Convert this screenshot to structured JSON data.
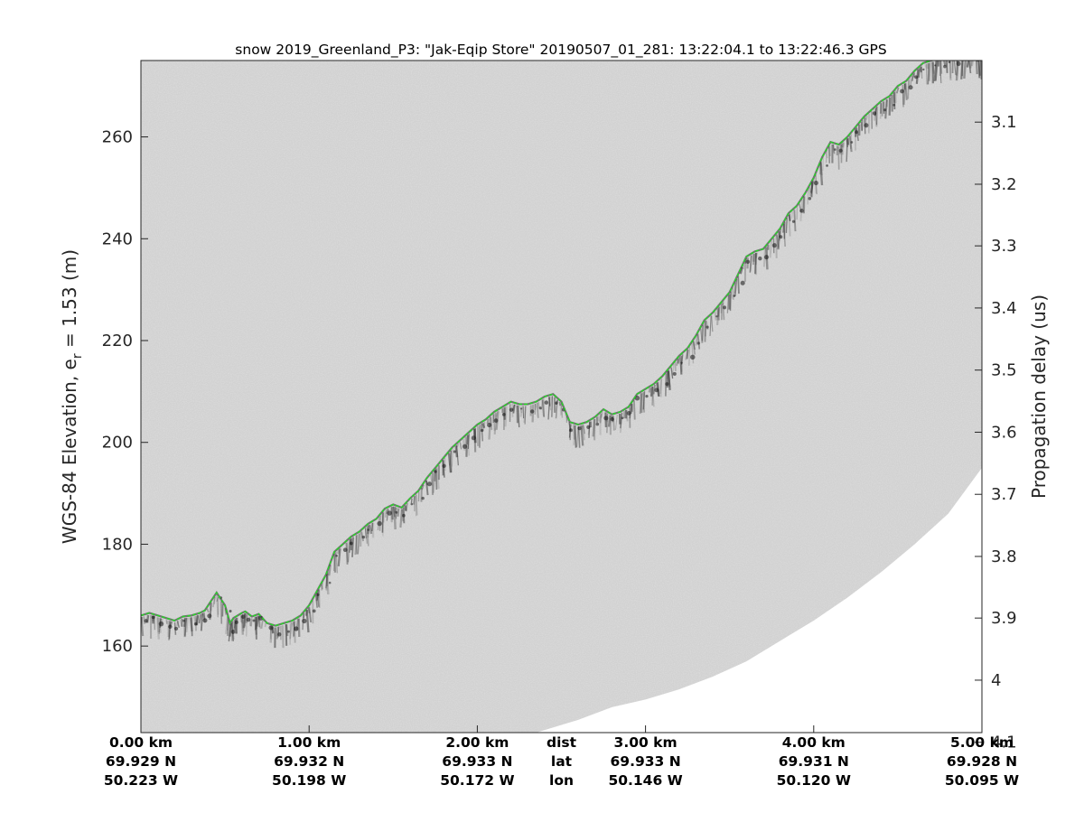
{
  "chart_data": {
    "type": "line",
    "title": "snow 2019_Greenland_P3: \"Jak-Eqip Store\"  20190507_01_281: 13:22:04.1 to 13:22:46.3 GPS",
    "ylabel_main": "WGS-84 Elevation, e",
    "ylabel_sub": "r",
    "ylabel_tail": " = 1.53 (m)",
    "ylabel_right": "Propagation delay (us)",
    "xlim": [
      0,
      5.0
    ],
    "ylim": [
      143,
      275
    ],
    "yticks": [
      160,
      180,
      200,
      220,
      240,
      260
    ],
    "yticks_right": [
      {
        "label": "3.1",
        "elev": 262.9
      },
      {
        "label": "3.2",
        "elev": 250.7
      },
      {
        "label": "3.3",
        "elev": 238.6
      },
      {
        "label": "3.4",
        "elev": 226.4
      },
      {
        "label": "3.5",
        "elev": 214.2
      },
      {
        "label": "3.6",
        "elev": 202.0
      },
      {
        "label": "3.7",
        "elev": 189.8
      },
      {
        "label": "3.8",
        "elev": 177.6
      },
      {
        "label": "3.9",
        "elev": 165.5
      },
      {
        "label": "4",
        "elev": 153.3
      },
      {
        "label": "4.1",
        "elev": 141.1
      }
    ],
    "geo_ticks": [
      {
        "x": 0,
        "dist": "0.00 km",
        "lat": "69.929 N",
        "lon": "50.223 W"
      },
      {
        "x": 1,
        "dist": "1.00 km",
        "lat": "69.932 N",
        "lon": "50.198 W"
      },
      {
        "x": 2,
        "dist": "2.00 km",
        "lat": "69.933 N",
        "lon": "50.172 W"
      },
      {
        "x": 3,
        "dist": "3.00 km",
        "lat": "69.933 N",
        "lon": "50.146 W"
      },
      {
        "x": 4,
        "dist": "4.00 km",
        "lat": "69.931 N",
        "lon": "50.120 W"
      },
      {
        "x": 5,
        "dist": "5.00 km",
        "lat": "69.928 N",
        "lon": "50.095 W"
      }
    ],
    "row_labels": {
      "x": 2.5,
      "dist": "dist",
      "lat": "lat",
      "lon": "lon"
    },
    "series": [
      {
        "color": "#22dd22",
        "x": [
          0,
          0.05,
          0.1,
          0.15,
          0.2,
          0.25,
          0.3,
          0.35,
          0.38,
          0.45,
          0.5,
          0.53,
          0.55,
          0.6,
          0.62,
          0.66,
          0.7,
          0.75,
          0.8,
          0.85,
          0.9,
          0.95,
          1.0,
          1.05,
          1.1,
          1.15,
          1.2,
          1.25,
          1.3,
          1.35,
          1.4,
          1.45,
          1.5,
          1.55,
          1.6,
          1.65,
          1.7,
          1.75,
          1.8,
          1.85,
          1.9,
          1.95,
          2.0,
          2.05,
          2.1,
          2.15,
          2.2,
          2.25,
          2.3,
          2.35,
          2.4,
          2.45,
          2.5,
          2.55,
          2.6,
          2.65,
          2.7,
          2.75,
          2.8,
          2.85,
          2.9,
          2.95,
          3.0,
          3.05,
          3.1,
          3.15,
          3.2,
          3.25,
          3.3,
          3.35,
          3.4,
          3.45,
          3.5,
          3.55,
          3.6,
          3.65,
          3.7,
          3.75,
          3.8,
          3.85,
          3.9,
          3.95,
          4.0,
          4.05,
          4.1,
          4.15,
          4.2,
          4.25,
          4.3,
          4.35,
          4.4,
          4.45,
          4.5,
          4.55,
          4.6,
          4.65,
          4.7,
          4.75,
          4.8,
          4.85,
          4.9,
          4.95,
          5.0
        ],
        "y": [
          166,
          166.5,
          166,
          165.5,
          165,
          165.8,
          166,
          166.5,
          167,
          170.5,
          168,
          164.5,
          165.5,
          166.5,
          166.8,
          165.8,
          166.3,
          164.5,
          164,
          164.5,
          165,
          166,
          168,
          171,
          174,
          178.5,
          180,
          181.5,
          182.5,
          184,
          185,
          187,
          187.8,
          187.2,
          189,
          190.5,
          193,
          195,
          197,
          199,
          200.5,
          202,
          203.5,
          204.5,
          206,
          207,
          208,
          207.5,
          207.5,
          208,
          209,
          209.5,
          208,
          204,
          203.5,
          204,
          205,
          206.5,
          205.5,
          206,
          207,
          209.5,
          210.5,
          211.5,
          213,
          215,
          217,
          218.5,
          221,
          224,
          225.5,
          227.5,
          229.5,
          233,
          236.5,
          237.5,
          238,
          240,
          242,
          245,
          246.5,
          249,
          252,
          256,
          259,
          258.5,
          260,
          262,
          264,
          265.5,
          267,
          268,
          270,
          271,
          273,
          274.5,
          275,
          275.5,
          276,
          276,
          276,
          276,
          276
        ]
      }
    ],
    "no_data_boundary": {
      "x": [
        2.35,
        2.6,
        2.8,
        3.0,
        3.2,
        3.4,
        3.6,
        3.8,
        4.0,
        4.2,
        4.4,
        4.6,
        4.8,
        5.0
      ],
      "y": [
        143,
        145.5,
        148,
        149.5,
        151.5,
        154,
        157,
        161,
        165,
        169.5,
        174.5,
        180,
        186,
        195
      ]
    }
  }
}
